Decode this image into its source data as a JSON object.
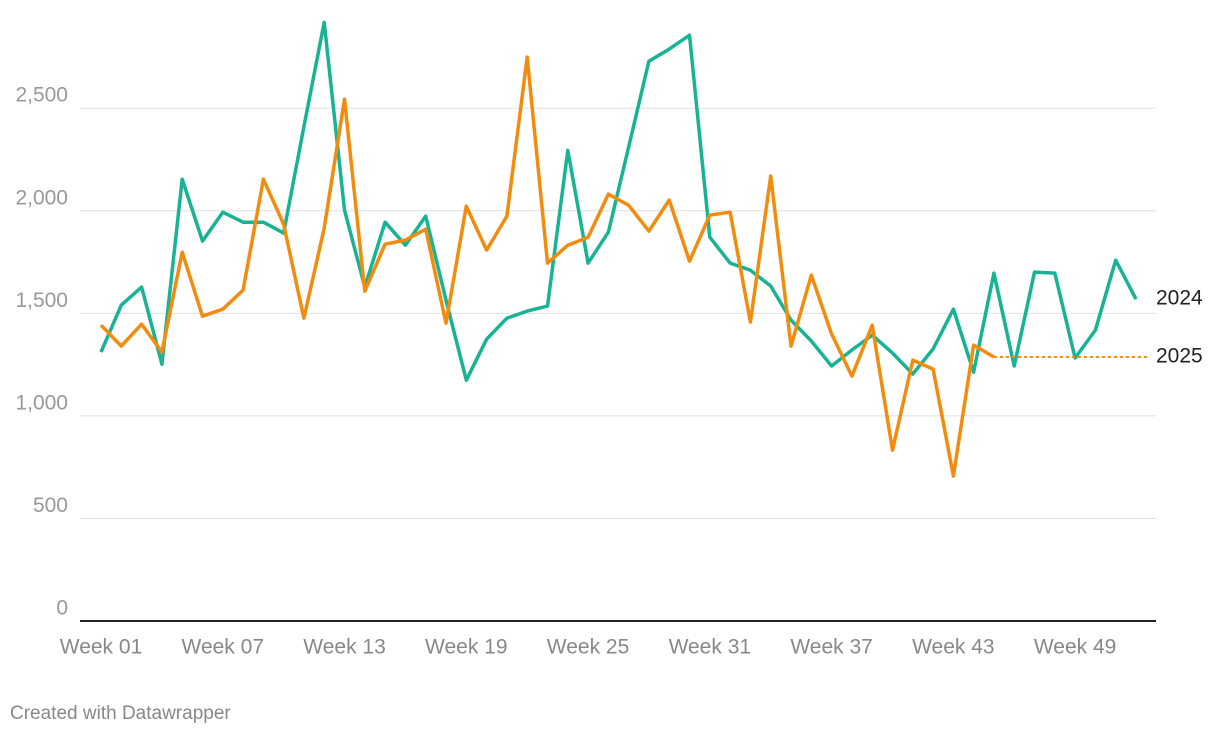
{
  "chart_data": {
    "type": "line",
    "categories": [
      "Week 01",
      null,
      null,
      null,
      null,
      null,
      "Week 07",
      null,
      null,
      null,
      null,
      null,
      "Week 13",
      null,
      null,
      null,
      null,
      null,
      "Week 19",
      null,
      null,
      null,
      null,
      null,
      "Week 25",
      null,
      null,
      null,
      null,
      null,
      "Week 31",
      null,
      null,
      null,
      null,
      null,
      "Week 37",
      null,
      null,
      null,
      null,
      null,
      "Week 43",
      null,
      null,
      null,
      null,
      null,
      "Week 49",
      null,
      null,
      null
    ],
    "series": [
      {
        "name": "2024",
        "color": "#17b394",
        "values": [
          1311,
          1540,
          1628,
          1252,
          2154,
          1852,
          1993,
          1944,
          1944,
          1891,
          2410,
          2919,
          2003,
          1628,
          1944,
          1832,
          1974,
          1564,
          1174,
          1374,
          1476,
          1511,
          1535,
          2295,
          1745,
          1896,
          2310,
          2729,
          2788,
          2856,
          1871,
          1745,
          1710,
          1633,
          1467,
          1365,
          1243,
          1321,
          1394,
          1306,
          1204,
          1326,
          1520,
          1213,
          1696,
          1243,
          1701,
          1696,
          1282,
          1418,
          1759,
          1569
        ]
      },
      {
        "name": "2025",
        "color": "#f28c0f",
        "values": [
          1442,
          1340,
          1447,
          1311,
          1798,
          1486,
          1520,
          1613,
          2154,
          1935,
          1476,
          1915,
          2544,
          1608,
          1837,
          1857,
          1910,
          1452,
          2022,
          1808,
          1974,
          2749,
          1745,
          1832,
          1871,
          2081,
          2027,
          1901,
          2052,
          1754,
          1979,
          1993,
          1457,
          2169,
          1340,
          1686,
          1399,
          1194,
          1442,
          833,
          1272,
          1228,
          707,
          1345,
          1287,
          null,
          null,
          null,
          null,
          null,
          null,
          null
        ]
      }
    ],
    "ylim": [
      0,
      2930
    ],
    "yticks": [
      0,
      500,
      {
        "value": 1000,
        "label": "1,000"
      },
      {
        "value": 1500,
        "label": "1,500"
      },
      {
        "value": 2000,
        "label": "2,000"
      },
      {
        "value": 2500,
        "label": "2,500"
      }
    ],
    "grid": true,
    "credit": "Created with Datawrapper"
  }
}
